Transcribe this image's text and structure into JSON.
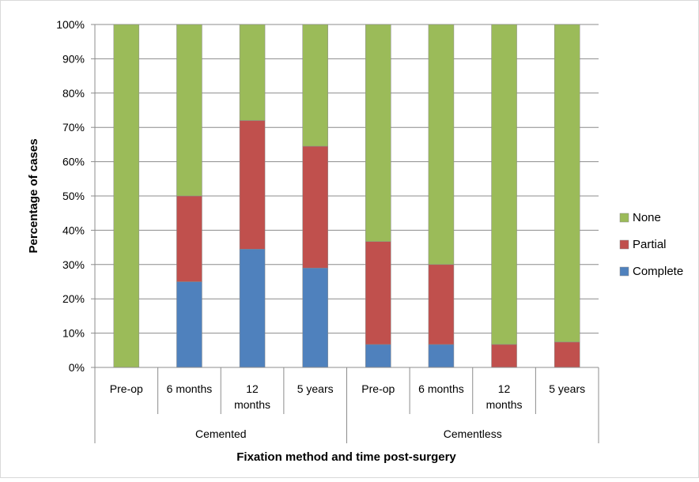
{
  "chart_data": {
    "type": "bar",
    "stacked": true,
    "percent_stacked": true,
    "groups": [
      {
        "label": "Cemented",
        "categories": [
          "Pre-op",
          "6 months",
          "12 months",
          "5 years"
        ]
      },
      {
        "label": "Cementless",
        "categories": [
          "Pre-op",
          "6 months",
          "12 months",
          "5 years"
        ]
      }
    ],
    "categories": [
      "Pre-op",
      "6 months",
      "12 months",
      "5 years",
      "Pre-op",
      "6 months",
      "12 months",
      "5 years"
    ],
    "category_lines": [
      [
        "Pre-op"
      ],
      [
        "6 months"
      ],
      [
        "12",
        "months"
      ],
      [
        "5 years"
      ],
      [
        "Pre-op"
      ],
      [
        "6 months"
      ],
      [
        "12",
        "months"
      ],
      [
        "5 years"
      ]
    ],
    "series": [
      {
        "name": "Complete",
        "color": "#4f81bd",
        "values": [
          0,
          25,
          34.5,
          29,
          6.7,
          6.7,
          0,
          0
        ]
      },
      {
        "name": "Partial",
        "color": "#c0504d",
        "values": [
          0,
          25,
          37.5,
          35.5,
          30,
          23.3,
          6.7,
          7.4
        ]
      },
      {
        "name": "None",
        "color": "#9bbb59",
        "values": [
          100,
          50,
          28,
          35.5,
          63.3,
          70,
          93.3,
          92.6
        ]
      }
    ],
    "legend_order": [
      "None",
      "Partial",
      "Complete"
    ],
    "legend_position": "right",
    "ylabel": "Percentage of cases",
    "xlabel": "Fixation method and time post-surgery",
    "yticks": [
      "0%",
      "10%",
      "20%",
      "30%",
      "40%",
      "50%",
      "60%",
      "70%",
      "80%",
      "90%",
      "100%"
    ],
    "ylim": [
      0,
      100
    ],
    "grid": true
  }
}
